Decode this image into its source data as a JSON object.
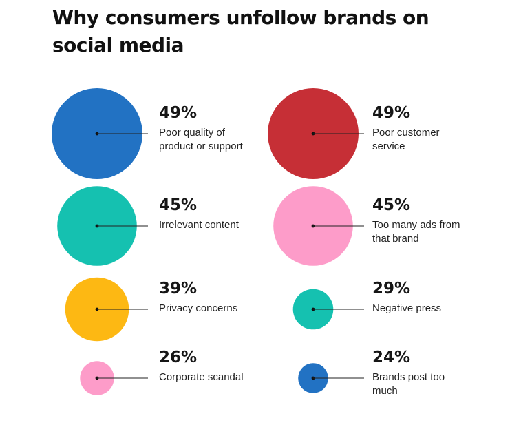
{
  "title": "Why consumers unfollow brands on social media",
  "chart_data": {
    "type": "bubble",
    "title": "Why consumers unfollow brands on social media",
    "unit": "%",
    "items": [
      {
        "value": 49,
        "value_label": "49%",
        "label": "Poor quality of product or support",
        "color": "#2272c3"
      },
      {
        "value": 49,
        "value_label": "49%",
        "label": "Poor customer service",
        "color": "#c62f36"
      },
      {
        "value": 45,
        "value_label": "45%",
        "label": "Irrelevant content",
        "color": "#15c1b0"
      },
      {
        "value": 45,
        "value_label": "45%",
        "label": "Too many ads from that brand",
        "color": "#fd9cc9"
      },
      {
        "value": 39,
        "value_label": "39%",
        "label": "Privacy concerns",
        "color": "#fdb813"
      },
      {
        "value": 29,
        "value_label": "29%",
        "label": "Negative press",
        "color": "#15c1b0"
      },
      {
        "value": 26,
        "value_label": "26%",
        "label": "Corporate scandal",
        "color": "#fd9cc9"
      },
      {
        "value": 24,
        "value_label": "24%",
        "label": "Brands post too much",
        "color": "#2272c3"
      }
    ]
  }
}
